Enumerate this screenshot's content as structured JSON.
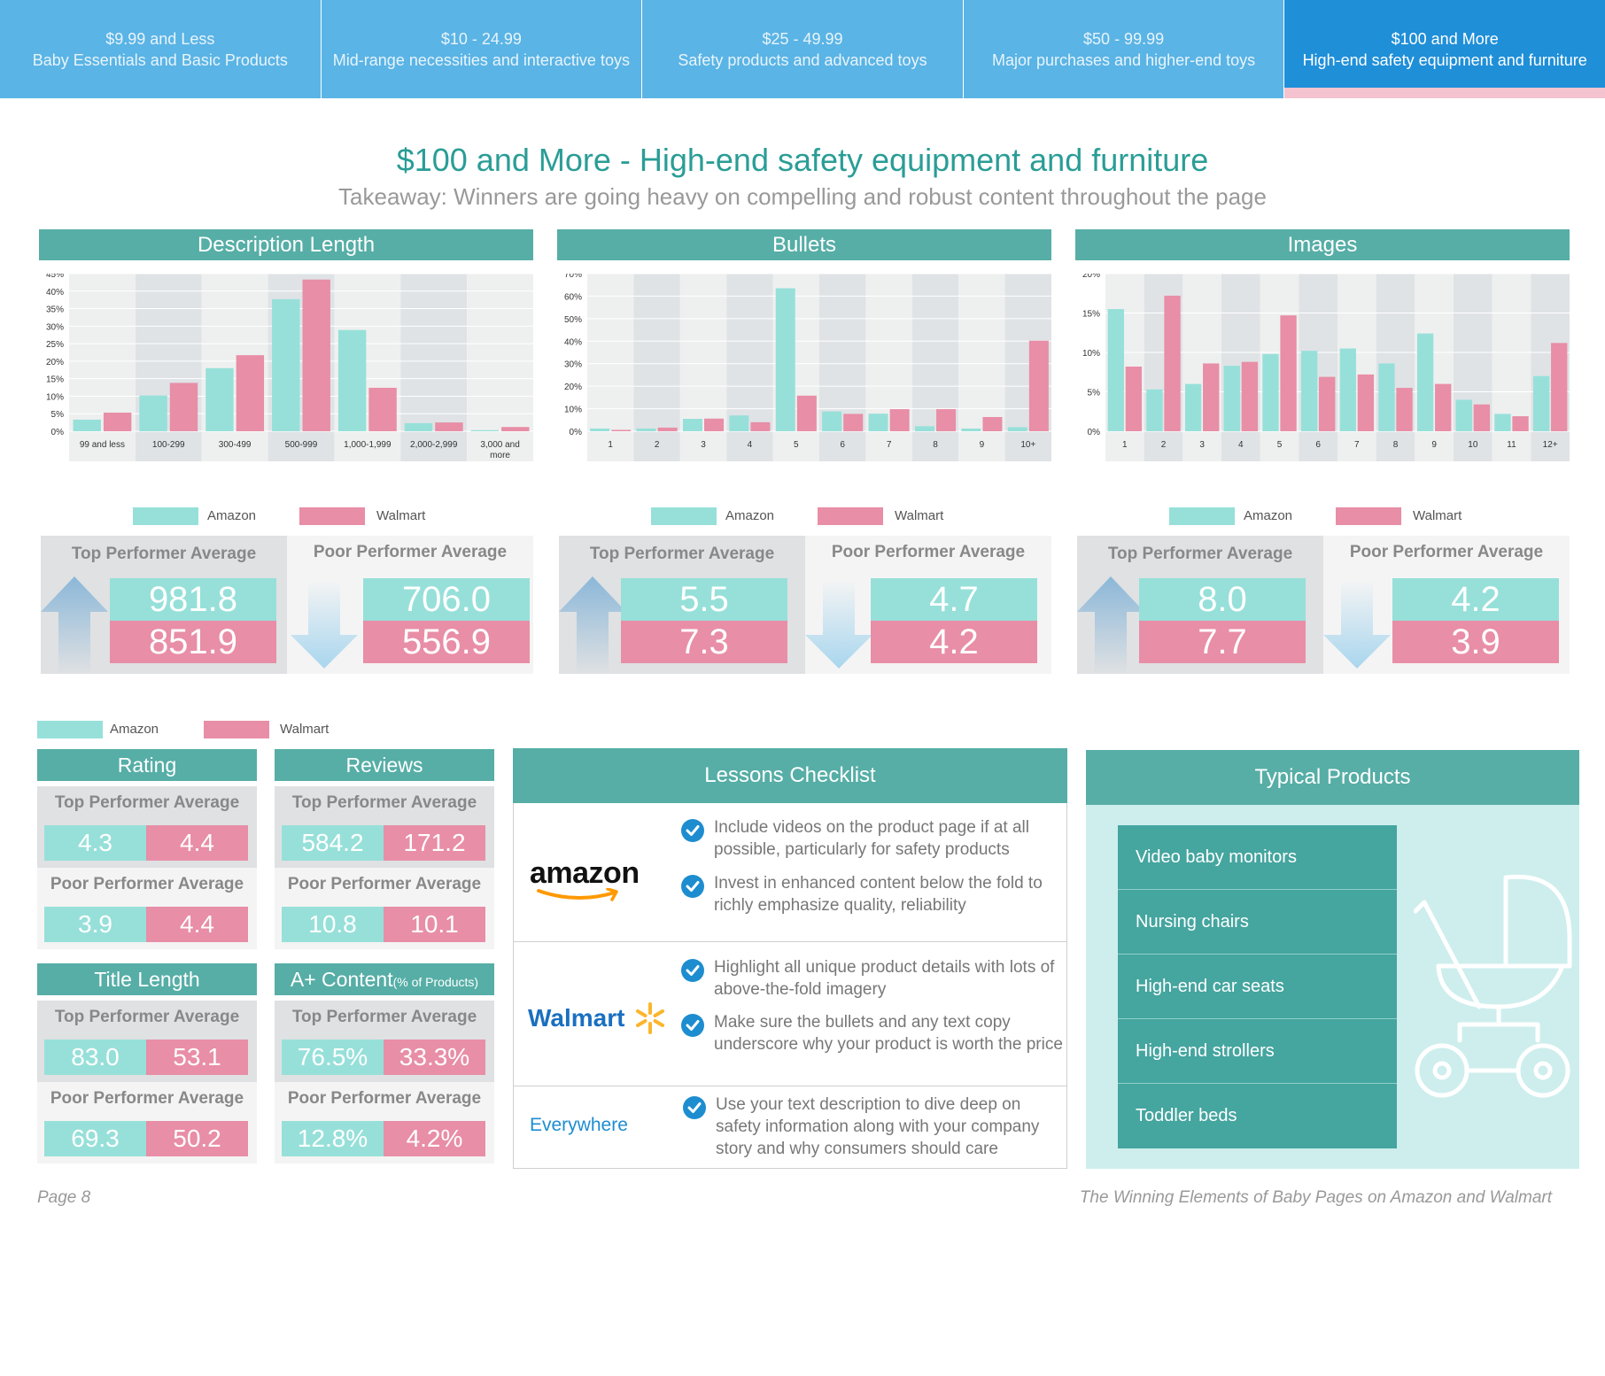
{
  "tabs": [
    {
      "line1": "$9.99 and Less",
      "line2": "Baby Essentials and Basic Products",
      "active": false
    },
    {
      "line1": "$10 - 24.99",
      "line2": "Mid-range necessities and interactive toys",
      "active": false
    },
    {
      "line1": "$25 - 49.99",
      "line2": "Safety products and advanced toys",
      "active": false
    },
    {
      "line1": "$50 - 99.99",
      "line2": "Major purchases and higher-end toys",
      "active": false
    },
    {
      "line1": "$100 and More",
      "line2": "High-end safety equipment and furniture",
      "active": true
    }
  ],
  "title": "$100 and More - High-end safety equipment and furniture",
  "subtitle": "Takeaway: Winners are going heavy on compelling and robust content throughout the page",
  "colors": {
    "amazon": "#97e0d9",
    "walmart": "#e88ea7",
    "header": "#56aea6",
    "title": "#2a9d96",
    "tab": "#5ab4e5",
    "tab_active": "#1f8fd8"
  },
  "legend": {
    "amazon": "Amazon",
    "walmart": "Walmart"
  },
  "labels": {
    "top": "Top Performer Average",
    "poor": "Poor Performer Average"
  },
  "panels": [
    {
      "title": "Description Length",
      "top_amazon": "981.8",
      "top_walmart": "851.9",
      "poor_amazon": "706.0",
      "poor_walmart": "556.9"
    },
    {
      "title": "Bullets",
      "top_amazon": "5.5",
      "top_walmart": "7.3",
      "poor_amazon": "4.7",
      "poor_walmart": "4.2"
    },
    {
      "title": "Images",
      "top_amazon": "8.0",
      "top_walmart": "7.7",
      "poor_amazon": "4.2",
      "poor_walmart": "3.9"
    }
  ],
  "chart_data": [
    {
      "type": "bar",
      "title": "Description Length",
      "categories": [
        "99 and less",
        "100-299",
        "300-499",
        "500-999",
        "1,000-1,999",
        "2,000-2,999",
        "3,000 and more"
      ],
      "series": [
        {
          "name": "Amazon",
          "values": [
            3.3,
            10.2,
            18,
            37.7,
            28.9,
            2.3,
            0.3
          ]
        },
        {
          "name": "Walmart",
          "values": [
            5.3,
            13.8,
            21.7,
            43.3,
            12.4,
            2.5,
            1.2
          ]
        }
      ],
      "ylim": [
        0,
        45
      ],
      "yticks": [
        "0%",
        "5%",
        "10%",
        "15%",
        "20%",
        "25%",
        "30%",
        "35%",
        "40%",
        "45%"
      ],
      "ytick_values": [
        0,
        5,
        10,
        15,
        20,
        25,
        30,
        35,
        40,
        45
      ]
    },
    {
      "type": "bar",
      "title": "Bullets",
      "categories": [
        "1",
        "2",
        "3",
        "4",
        "5",
        "6",
        "7",
        "8",
        "9",
        "10+"
      ],
      "series": [
        {
          "name": "Amazon",
          "values": [
            1.2,
            1.2,
            5.5,
            7,
            63.5,
            8.8,
            7.8,
            2.2,
            1.2,
            1.8
          ]
        },
        {
          "name": "Walmart",
          "values": [
            0.6,
            1.6,
            5.6,
            4,
            15.8,
            7.7,
            9.8,
            9.8,
            6.3,
            40.2
          ]
        }
      ],
      "ylim": [
        0,
        70
      ],
      "yticks": [
        "0%",
        "10%",
        "20%",
        "30%",
        "40%",
        "50%",
        "60%",
        "70%"
      ],
      "ytick_values": [
        0,
        10,
        20,
        30,
        40,
        50,
        60,
        70
      ]
    },
    {
      "type": "bar",
      "title": "Images",
      "categories": [
        "1",
        "2",
        "3",
        "4",
        "5",
        "6",
        "7",
        "8",
        "9",
        "10",
        "11",
        "12+"
      ],
      "series": [
        {
          "name": "Amazon",
          "values": [
            15.5,
            5.3,
            6,
            8.3,
            9.8,
            10.2,
            10.5,
            8.6,
            12.4,
            4,
            2.2,
            7
          ]
        },
        {
          "name": "Walmart",
          "values": [
            8.2,
            17.2,
            8.6,
            8.8,
            14.7,
            6.9,
            7.2,
            5.5,
            6,
            3.4,
            1.9,
            11.2
          ]
        }
      ],
      "ylim": [
        0,
        20
      ],
      "yticks": [
        "0%",
        "5%",
        "10%",
        "15%",
        "20%"
      ],
      "ytick_values": [
        0,
        5,
        10,
        15,
        20
      ]
    }
  ],
  "metrics": [
    {
      "title": "Rating",
      "note": "",
      "top_amazon": "4.3",
      "top_walmart": "4.4",
      "poor_amazon": "3.9",
      "poor_walmart": "4.4"
    },
    {
      "title": "Reviews",
      "note": "",
      "top_amazon": "584.2",
      "top_walmart": "171.2",
      "poor_amazon": "10.8",
      "poor_walmart": "10.1"
    },
    {
      "title": "Title Length",
      "note": "",
      "top_amazon": "83.0",
      "top_walmart": "53.1",
      "poor_amazon": "69.3",
      "poor_walmart": "50.2"
    },
    {
      "title": "A+ Content",
      "note": "(% of Products)",
      "top_amazon": "76.5%",
      "top_walmart": "33.3%",
      "poor_amazon": "12.8%",
      "poor_walmart": "4.2%"
    }
  ],
  "checklist": {
    "title": "Lessons Checklist",
    "amazon_logo": "amazon",
    "walmart_logo": "Walmart",
    "everywhere": "Everywhere",
    "amazon_items": [
      "Include videos on the product page if at all possible, particularly for safety products",
      "Invest in enhanced content below the fold to richly emphasize quality, reliability"
    ],
    "walmart_items": [
      "Highlight all unique product details with lots of above-the-fold imagery",
      "Make sure the bullets and any text copy underscore why your product is worth the price"
    ],
    "everywhere_items": [
      "Use your text description to dive deep on safety information along with your company story and why consumers should care"
    ]
  },
  "typical": {
    "title": "Typical Products",
    "items": [
      "Video baby monitors",
      "Nursing chairs",
      "High-end car seats",
      "High-end strollers",
      "Toddler beds"
    ]
  },
  "footer": {
    "page": "Page 8",
    "doc_title": "The Winning Elements of Baby Pages on Amazon and Walmart"
  }
}
